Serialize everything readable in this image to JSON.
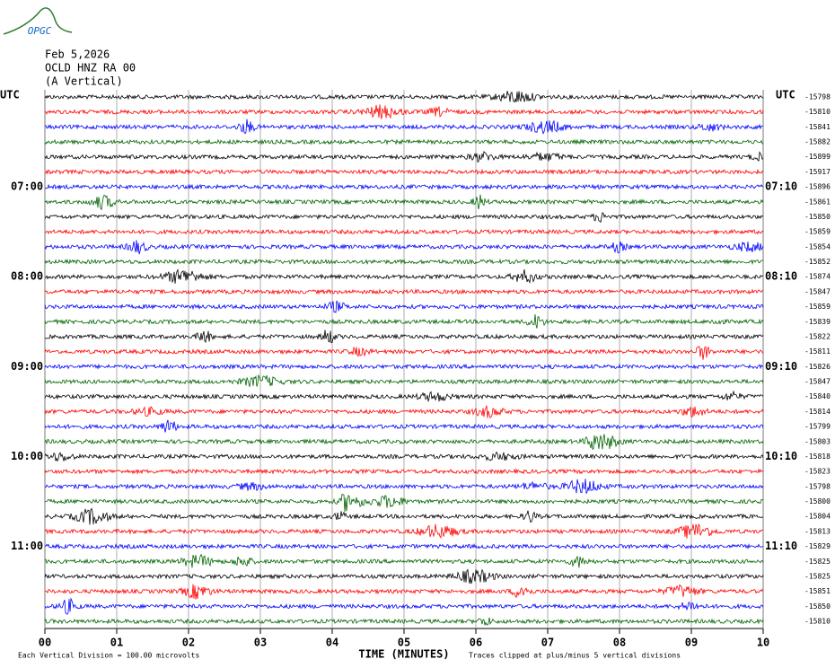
{
  "logo": "OPGC",
  "header": {
    "date": "Feb 5,2026",
    "station": "OCLD HNZ RA 00",
    "component": "(A Vertical)"
  },
  "utc_left": "UTC",
  "utc_right": "UTC",
  "left_labels": [
    "07:00",
    "08:00",
    "09:00",
    "10:00",
    "11:00"
  ],
  "right_labels": [
    "07:10",
    "08:10",
    "09:10",
    "10:10",
    "11:10"
  ],
  "trace_colors": [
    "#000000",
    "#ff0000",
    "#0000ff",
    "#006400"
  ],
  "offsets": [
    -15798,
    -15810,
    -15841,
    -15882,
    -15899,
    -15917,
    -15896,
    -15861,
    -15850,
    -15859,
    -15854,
    -15852,
    -15874,
    -15847,
    -15859,
    -15839,
    -15822,
    -15811,
    -15826,
    -15847,
    -15840,
    -15814,
    -15799,
    -15803,
    -15818,
    -15823,
    -15798,
    -15800,
    -15804,
    -15813,
    -15829,
    -15825,
    -15825,
    -15851,
    -15850,
    -15810
  ],
  "xaxis": {
    "title": "TIME (MINUTES)",
    "xlim": [
      0,
      10
    ],
    "xticks": [
      {
        "value": 0,
        "label": "00"
      },
      {
        "value": 1,
        "label": "01"
      },
      {
        "value": 2,
        "label": "02"
      },
      {
        "value": 3,
        "label": "03"
      },
      {
        "value": 4,
        "label": "04"
      },
      {
        "value": 5,
        "label": "05"
      },
      {
        "value": 6,
        "label": "06"
      },
      {
        "value": 7,
        "label": "07"
      },
      {
        "value": 8,
        "label": "08"
      },
      {
        "value": 9,
        "label": "09"
      },
      {
        "value": 10,
        "label": "10"
      }
    ]
  },
  "footer": {
    "scale": "Each Vertical Division =  100.00 microvolts",
    "clip": "Traces clipped at plus/minus 5 vertical divisions"
  }
}
